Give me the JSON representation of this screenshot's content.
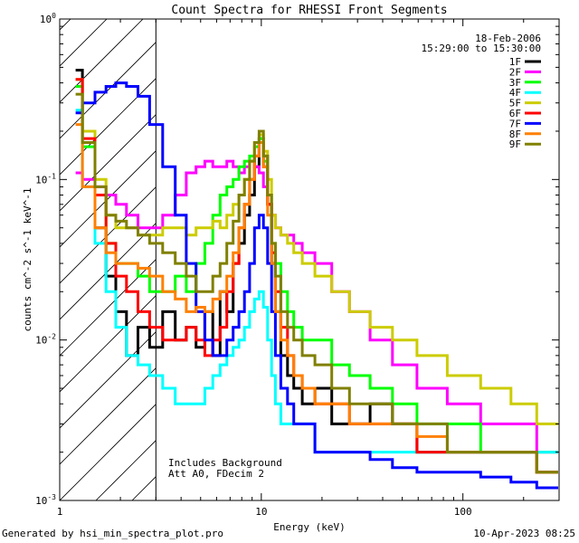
{
  "chart_data": {
    "type": "line",
    "title": "Count Spectra for RHESSI Front Segments",
    "xlabel": "Energy (keV)",
    "ylabel": "counts cm^-2 s^-1 keV^-1",
    "x_scale": "log",
    "y_scale": "log",
    "xlim": [
      1,
      300
    ],
    "ylim": [
      0.001,
      1
    ],
    "x_tick_labels": [
      "1",
      "10",
      "100"
    ],
    "y_tick_labels": [
      {
        "base": "10",
        "exp": "-3"
      },
      {
        "base": "10",
        "exp": "-2"
      },
      {
        "base": "10",
        "exp": "-1"
      },
      {
        "base": "10",
        "exp": "0"
      }
    ],
    "date": "18-Feb-2006",
    "time_range": "15:29:00 to 15:30:00",
    "threshold_energy": 3,
    "annotations": [
      "Includes Background",
      "Att A0, FDecim 2"
    ],
    "energies": [
      1.2,
      1.4,
      1.6,
      1.8,
      2.0,
      2.3,
      2.6,
      3.0,
      3.5,
      4,
      4.5,
      5,
      5.5,
      6,
      6.5,
      7,
      7.5,
      8,
      8.5,
      9,
      9.5,
      10,
      10.5,
      11,
      11.5,
      12,
      13,
      14,
      15,
      17,
      20,
      25,
      30,
      40,
      50,
      70,
      100,
      150,
      200,
      270
    ],
    "series": [
      {
        "name": "1F",
        "color": "#000000",
        "values": [
          0.48,
          0.2,
          0.05,
          0.025,
          0.015,
          0.008,
          0.012,
          0.009,
          0.015,
          0.01,
          0.012,
          0.009,
          0.015,
          0.008,
          0.02,
          0.015,
          0.03,
          0.04,
          0.06,
          0.08,
          0.12,
          0.18,
          0.14,
          0.07,
          0.03,
          0.015,
          0.008,
          0.006,
          0.005,
          0.004,
          0.005,
          0.003,
          0.003,
          0.004,
          0.003,
          0.002,
          0.002,
          0.002,
          0.002,
          0.0015
        ]
      },
      {
        "name": "2F",
        "color": "#ff00ff",
        "values": [
          0.11,
          0.1,
          0.09,
          0.08,
          0.07,
          0.06,
          0.05,
          0.05,
          0.06,
          0.08,
          0.11,
          0.12,
          0.13,
          0.12,
          0.12,
          0.13,
          0.12,
          0.11,
          0.12,
          0.13,
          0.12,
          0.11,
          0.09,
          0.07,
          0.06,
          0.05,
          0.045,
          0.045,
          0.04,
          0.035,
          0.03,
          0.02,
          0.015,
          0.01,
          0.007,
          0.005,
          0.004,
          0.003,
          0.003,
          0.002
        ]
      },
      {
        "name": "3F",
        "color": "#00ff00",
        "values": [
          0.38,
          0.16,
          0.08,
          0.04,
          0.03,
          0.03,
          0.025,
          0.02,
          0.02,
          0.025,
          0.02,
          0.03,
          0.04,
          0.06,
          0.08,
          0.09,
          0.1,
          0.12,
          0.13,
          0.14,
          0.16,
          0.18,
          0.13,
          0.08,
          0.04,
          0.03,
          0.02,
          0.015,
          0.012,
          0.01,
          0.01,
          0.007,
          0.006,
          0.005,
          0.004,
          0.003,
          0.003,
          0.002,
          0.002,
          0.002
        ]
      },
      {
        "name": "4F",
        "color": "#00ffff",
        "values": [
          0.27,
          0.09,
          0.04,
          0.02,
          0.012,
          0.008,
          0.007,
          0.006,
          0.005,
          0.004,
          0.004,
          0.004,
          0.005,
          0.006,
          0.007,
          0.008,
          0.009,
          0.01,
          0.012,
          0.015,
          0.018,
          0.02,
          0.016,
          0.01,
          0.006,
          0.004,
          0.003,
          0.003,
          0.003,
          0.003,
          0.002,
          0.002,
          0.002,
          0.002,
          0.002,
          0.002,
          0.002,
          0.002,
          0.002,
          0.002
        ]
      },
      {
        "name": "5F",
        "color": "#cccc00",
        "values": [
          0.42,
          0.2,
          0.1,
          0.06,
          0.05,
          0.05,
          0.045,
          0.045,
          0.05,
          0.05,
          0.045,
          0.05,
          0.05,
          0.055,
          0.05,
          0.06,
          0.07,
          0.08,
          0.1,
          0.13,
          0.17,
          0.19,
          0.15,
          0.1,
          0.06,
          0.05,
          0.045,
          0.04,
          0.035,
          0.03,
          0.025,
          0.02,
          0.015,
          0.012,
          0.01,
          0.008,
          0.006,
          0.005,
          0.004,
          0.003
        ]
      },
      {
        "name": "6F",
        "color": "#ff0000",
        "values": [
          0.42,
          0.18,
          0.08,
          0.04,
          0.025,
          0.02,
          0.015,
          0.012,
          0.01,
          0.01,
          0.012,
          0.01,
          0.008,
          0.01,
          0.012,
          0.02,
          0.03,
          0.05,
          0.07,
          0.1,
          0.14,
          0.17,
          0.12,
          0.07,
          0.035,
          0.02,
          0.012,
          0.008,
          0.006,
          0.005,
          0.004,
          0.004,
          0.003,
          0.003,
          0.003,
          0.002,
          0.002,
          0.002,
          0.002,
          0.0015
        ]
      },
      {
        "name": "7F",
        "color": "#0000ff",
        "values": [
          0.26,
          0.3,
          0.35,
          0.38,
          0.4,
          0.38,
          0.33,
          0.22,
          0.12,
          0.06,
          0.03,
          0.015,
          0.01,
          0.008,
          0.008,
          0.01,
          0.012,
          0.015,
          0.02,
          0.03,
          0.05,
          0.06,
          0.05,
          0.03,
          0.015,
          0.008,
          0.005,
          0.004,
          0.003,
          0.003,
          0.002,
          0.002,
          0.002,
          0.0018,
          0.0016,
          0.0015,
          0.0015,
          0.0014,
          0.0013,
          0.0012
        ]
      },
      {
        "name": "8F",
        "color": "#ff8000",
        "values": [
          0.22,
          0.09,
          0.05,
          0.035,
          0.03,
          0.03,
          0.028,
          0.025,
          0.02,
          0.018,
          0.015,
          0.016,
          0.015,
          0.018,
          0.02,
          0.025,
          0.035,
          0.05,
          0.07,
          0.1,
          0.14,
          0.17,
          0.12,
          0.06,
          0.03,
          0.015,
          0.01,
          0.008,
          0.006,
          0.005,
          0.004,
          0.004,
          0.003,
          0.003,
          0.003,
          0.0025,
          0.002,
          0.002,
          0.002,
          0.0015
        ]
      },
      {
        "name": "9F",
        "color": "#808000",
        "values": [
          0.34,
          0.17,
          0.09,
          0.06,
          0.055,
          0.05,
          0.045,
          0.04,
          0.035,
          0.03,
          0.025,
          0.02,
          0.02,
          0.025,
          0.03,
          0.04,
          0.055,
          0.08,
          0.1,
          0.13,
          0.17,
          0.2,
          0.14,
          0.08,
          0.04,
          0.025,
          0.015,
          0.012,
          0.01,
          0.008,
          0.007,
          0.005,
          0.004,
          0.004,
          0.003,
          0.003,
          0.002,
          0.002,
          0.002,
          0.0015
        ]
      }
    ]
  },
  "footer": {
    "generated_by": "Generated by hsi_min_spectra_plot.pro",
    "timestamp": "10-Apr-2023 08:25"
  }
}
